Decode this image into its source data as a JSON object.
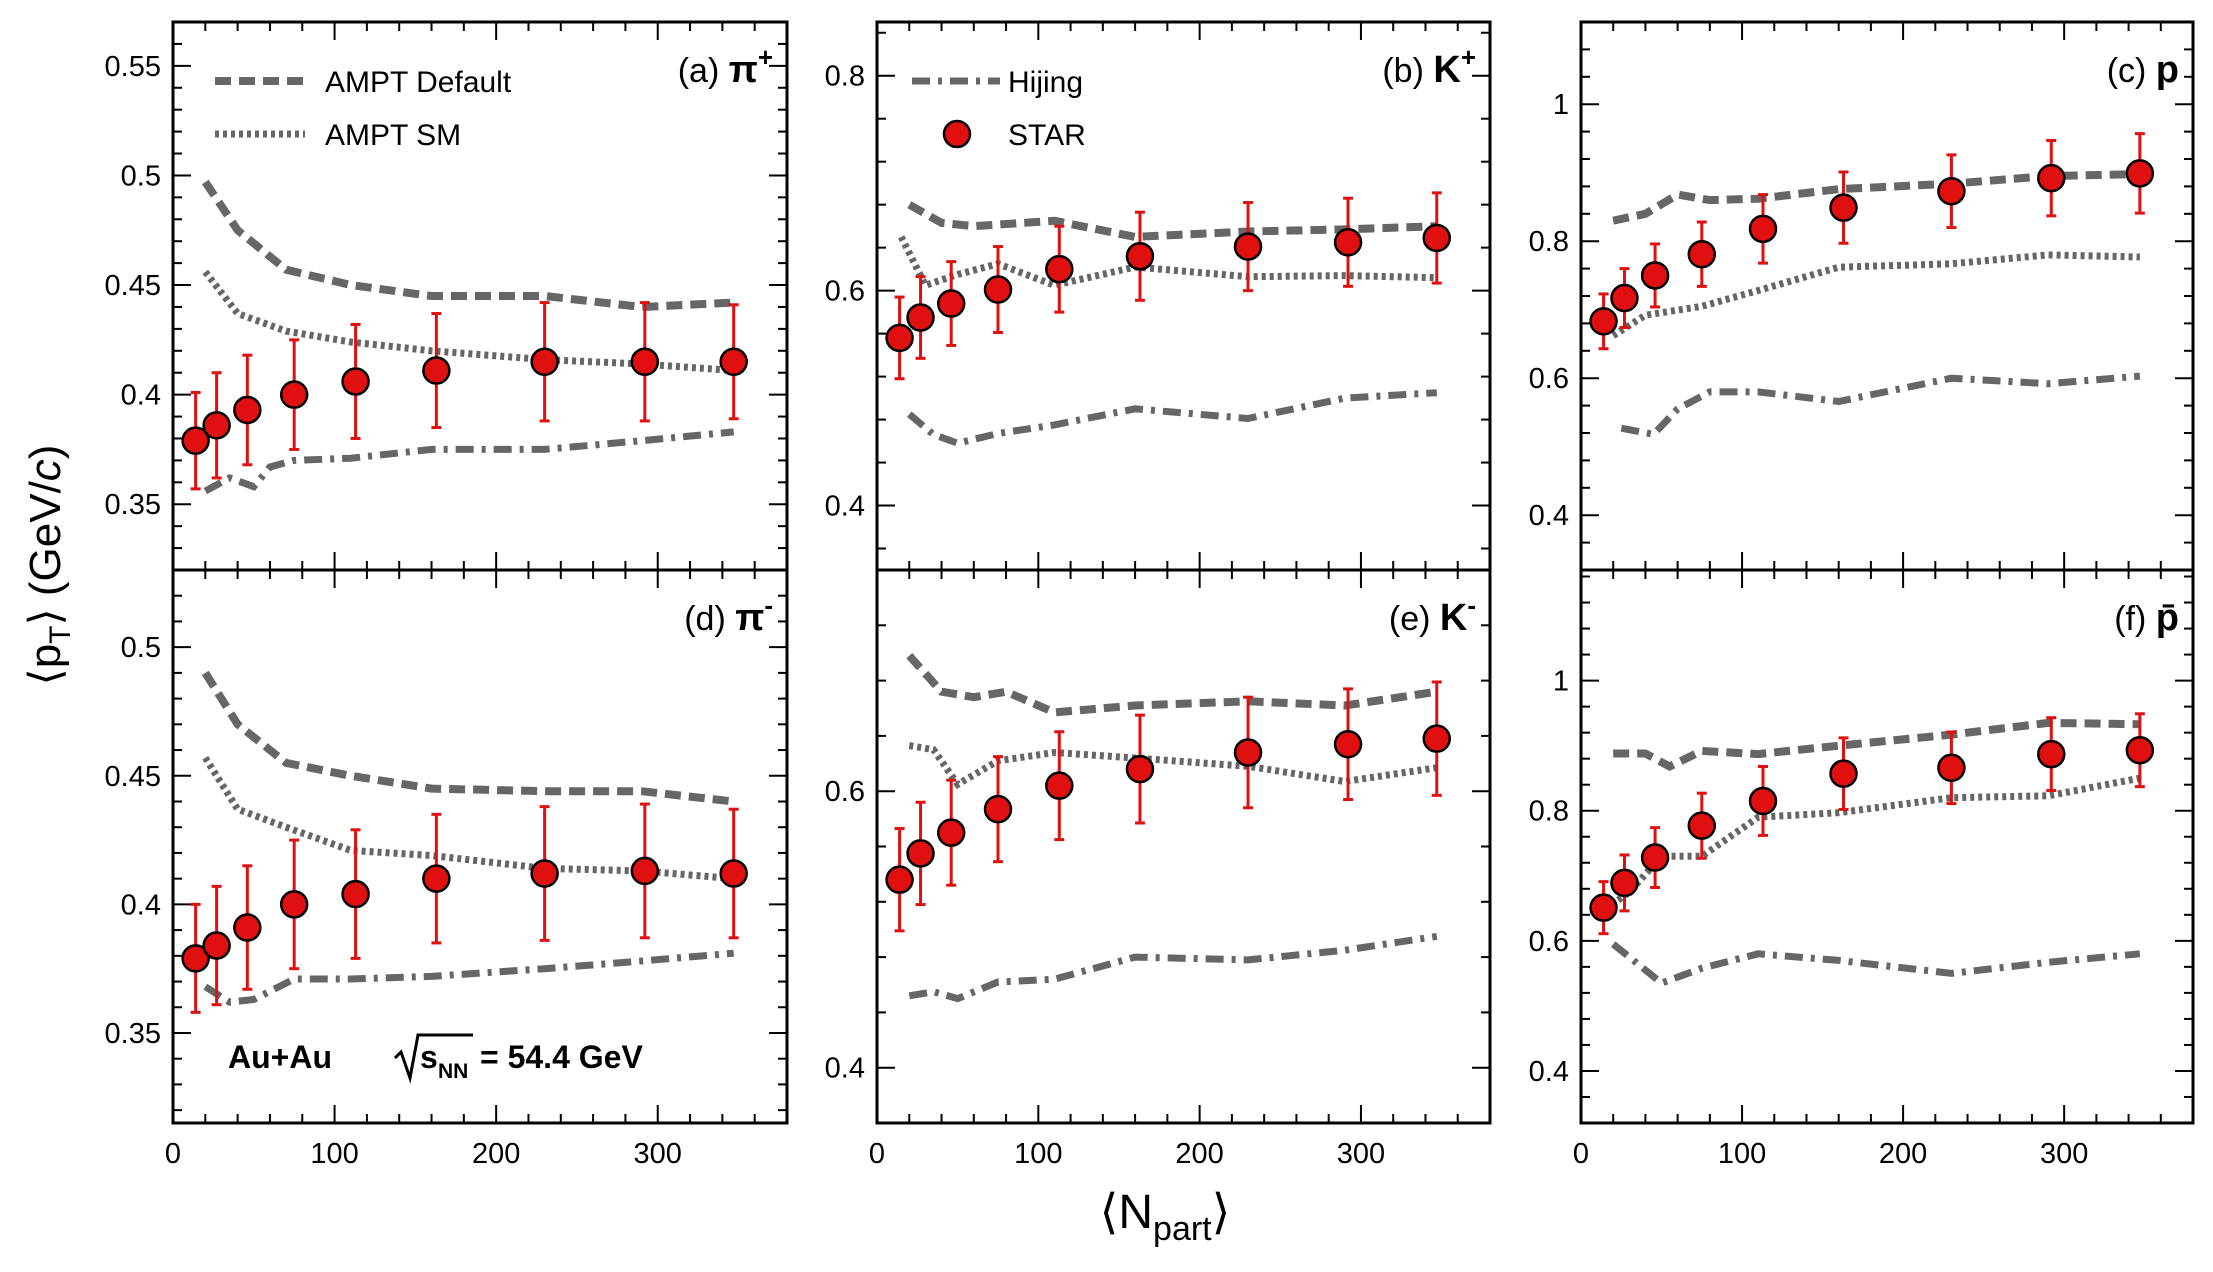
{
  "figure": {
    "ylabel": "⟨p_T⟩ (GeV/c)",
    "xlabel": "⟨N_part⟩",
    "system_text": "Au+Au √s_NN = 54.4 GeV",
    "colors": {
      "model_lines": "#666666",
      "star_fill": "#e01010",
      "star_error": "#e01010",
      "axis": "#000000"
    },
    "legend": [
      {
        "name": "AMPT Default",
        "style": "dashed",
        "panel": "a",
        "position": "top-left"
      },
      {
        "name": "AMPT SM",
        "style": "dotted",
        "panel": "a",
        "position": "top-left"
      },
      {
        "name": "Hijing",
        "style": "dash-dot",
        "panel": "b",
        "position": "top-left"
      },
      {
        "name": "STAR",
        "style": "marker",
        "panel": "b",
        "position": "top-left"
      }
    ]
  },
  "chart_data": [
    {
      "id": "a",
      "type": "scatter",
      "label_prefix": "(a)",
      "particle": "π",
      "charge": "+",
      "xlim": [
        0,
        380
      ],
      "ylim": [
        0.32,
        0.57
      ],
      "yticks": [
        0.35,
        0.4,
        0.45,
        0.5,
        0.55
      ],
      "ytick_labels": [
        "0.35",
        "0.4",
        "0.45",
        "0.5",
        "0.55"
      ],
      "xticks": [
        0,
        100,
        200,
        300
      ],
      "xtick_labels": [],
      "star": {
        "x": [
          14,
          27,
          46,
          75,
          113,
          163,
          230,
          292,
          347
        ],
        "y": [
          0.379,
          0.386,
          0.393,
          0.4,
          0.406,
          0.411,
          0.415,
          0.415,
          0.415
        ],
        "err": [
          0.022,
          0.024,
          0.025,
          0.025,
          0.026,
          0.026,
          0.027,
          0.027,
          0.026
        ]
      },
      "ampt_default": {
        "x": [
          20,
          40,
          70,
          110,
          160,
          230,
          290,
          347
        ],
        "y": [
          0.497,
          0.475,
          0.457,
          0.45,
          0.445,
          0.445,
          0.44,
          0.442
        ]
      },
      "ampt_sm": {
        "x": [
          20,
          40,
          70,
          110,
          160,
          230,
          290,
          347
        ],
        "y": [
          0.456,
          0.437,
          0.429,
          0.424,
          0.42,
          0.416,
          0.414,
          0.411
        ]
      },
      "hijing": {
        "x": [
          20,
          35,
          50,
          60,
          75,
          110,
          160,
          230,
          290,
          347
        ],
        "y": [
          0.356,
          0.362,
          0.358,
          0.367,
          0.37,
          0.371,
          0.375,
          0.375,
          0.379,
          0.383
        ]
      }
    },
    {
      "id": "b",
      "type": "scatter",
      "label_prefix": "(b)",
      "particle": "K",
      "charge": "+",
      "xlim": [
        0,
        380
      ],
      "ylim": [
        0.34,
        0.85
      ],
      "yticks": [
        0.4,
        0.6,
        0.8
      ],
      "ytick_labels": [
        "0.4",
        "0.6",
        "0.8"
      ],
      "xticks": [
        0,
        100,
        200,
        300
      ],
      "xtick_labels": [],
      "star": {
        "x": [
          14,
          27,
          46,
          75,
          113,
          163,
          230,
          292,
          347
        ],
        "y": [
          0.556,
          0.575,
          0.588,
          0.601,
          0.62,
          0.632,
          0.641,
          0.645,
          0.649
        ],
        "err": [
          0.038,
          0.038,
          0.039,
          0.04,
          0.04,
          0.041,
          0.041,
          0.041,
          0.042
        ]
      },
      "ampt_default": {
        "x": [
          20,
          40,
          60,
          110,
          160,
          230,
          290,
          347
        ],
        "y": [
          0.68,
          0.663,
          0.66,
          0.665,
          0.65,
          0.655,
          0.657,
          0.66
        ]
      },
      "ampt_sm": {
        "x": [
          15,
          30,
          50,
          75,
          110,
          160,
          230,
          290,
          347
        ],
        "y": [
          0.65,
          0.605,
          0.615,
          0.625,
          0.605,
          0.622,
          0.613,
          0.614,
          0.612
        ]
      },
      "hijing": {
        "x": [
          20,
          35,
          50,
          75,
          110,
          160,
          230,
          290,
          347
        ],
        "y": [
          0.485,
          0.466,
          0.458,
          0.467,
          0.475,
          0.49,
          0.481,
          0.5,
          0.505
        ]
      }
    },
    {
      "id": "c",
      "type": "scatter",
      "label_prefix": "(c)",
      "particle": "p",
      "charge": "",
      "xlim": [
        0,
        380
      ],
      "ylim": [
        0.32,
        1.12
      ],
      "yticks": [
        0.4,
        0.6,
        0.8,
        1.0
      ],
      "ytick_labels": [
        "0.4",
        "0.6",
        "0.8",
        "1"
      ],
      "xticks": [
        0,
        100,
        200,
        300
      ],
      "xtick_labels": [],
      "star": {
        "x": [
          14,
          27,
          46,
          75,
          113,
          163,
          230,
          292,
          347
        ],
        "y": [
          0.683,
          0.717,
          0.75,
          0.781,
          0.818,
          0.849,
          0.873,
          0.892,
          0.899
        ],
        "err": [
          0.04,
          0.043,
          0.046,
          0.047,
          0.05,
          0.052,
          0.053,
          0.055,
          0.058
        ]
      },
      "ampt_default": {
        "x": [
          20,
          40,
          60,
          80,
          110,
          160,
          230,
          290,
          347
        ],
        "y": [
          0.83,
          0.84,
          0.868,
          0.86,
          0.862,
          0.876,
          0.884,
          0.895,
          0.898
        ]
      },
      "ampt_sm": {
        "x": [
          20,
          40,
          75,
          110,
          160,
          230,
          290,
          347
        ],
        "y": [
          0.662,
          0.692,
          0.705,
          0.728,
          0.762,
          0.767,
          0.78,
          0.777
        ]
      },
      "hijing": {
        "x": [
          25,
          45,
          60,
          80,
          110,
          160,
          230,
          290,
          347
        ],
        "y": [
          0.527,
          0.518,
          0.555,
          0.58,
          0.58,
          0.566,
          0.6,
          0.592,
          0.603
        ]
      }
    },
    {
      "id": "d",
      "type": "scatter",
      "label_prefix": "(d)",
      "particle": "π",
      "charge": "-",
      "xlim": [
        0,
        380
      ],
      "ylim": [
        0.315,
        0.53
      ],
      "yticks": [
        0.35,
        0.4,
        0.45,
        0.5
      ],
      "ytick_labels": [
        "0.35",
        "0.4",
        "0.45",
        "0.5"
      ],
      "xticks": [
        0,
        100,
        200,
        300
      ],
      "xtick_labels": [
        "0",
        "100",
        "200",
        "300"
      ],
      "star": {
        "x": [
          14,
          27,
          46,
          75,
          113,
          163,
          230,
          292,
          347
        ],
        "y": [
          0.379,
          0.384,
          0.391,
          0.4,
          0.404,
          0.41,
          0.412,
          0.413,
          0.412
        ],
        "err": [
          0.021,
          0.023,
          0.024,
          0.025,
          0.025,
          0.025,
          0.026,
          0.026,
          0.025
        ]
      },
      "ampt_default": {
        "x": [
          20,
          40,
          70,
          110,
          160,
          230,
          290,
          347
        ],
        "y": [
          0.49,
          0.47,
          0.455,
          0.45,
          0.445,
          0.444,
          0.444,
          0.44
        ]
      },
      "ampt_sm": {
        "x": [
          20,
          40,
          70,
          110,
          160,
          230,
          290,
          347
        ],
        "y": [
          0.457,
          0.437,
          0.43,
          0.421,
          0.419,
          0.414,
          0.413,
          0.41
        ]
      },
      "hijing": {
        "x": [
          20,
          35,
          50,
          75,
          110,
          160,
          230,
          290,
          347
        ],
        "y": [
          0.368,
          0.362,
          0.363,
          0.371,
          0.371,
          0.372,
          0.375,
          0.378,
          0.381
        ]
      }
    },
    {
      "id": "e",
      "type": "scatter",
      "label_prefix": "(e)",
      "particle": "K",
      "charge": "-",
      "xlim": [
        0,
        380
      ],
      "ylim": [
        0.36,
        0.76
      ],
      "yticks": [
        0.4,
        0.6
      ],
      "ytick_labels": [
        "0.4",
        "0.6"
      ],
      "xticks": [
        0,
        100,
        200,
        300
      ],
      "xtick_labels": [
        "0",
        "100",
        "200",
        "300"
      ],
      "star": {
        "x": [
          14,
          27,
          46,
          75,
          113,
          163,
          230,
          292,
          347
        ],
        "y": [
          0.536,
          0.555,
          0.57,
          0.587,
          0.604,
          0.616,
          0.628,
          0.634,
          0.638
        ],
        "err": [
          0.037,
          0.037,
          0.038,
          0.038,
          0.039,
          0.039,
          0.04,
          0.04,
          0.041
        ]
      },
      "ampt_default": {
        "x": [
          20,
          40,
          60,
          80,
          110,
          160,
          230,
          290,
          347
        ],
        "y": [
          0.698,
          0.672,
          0.668,
          0.672,
          0.657,
          0.662,
          0.665,
          0.662,
          0.672
        ]
      },
      "ampt_sm": {
        "x": [
          20,
          35,
          50,
          75,
          110,
          160,
          230,
          290,
          347
        ],
        "y": [
          0.633,
          0.63,
          0.605,
          0.622,
          0.628,
          0.624,
          0.618,
          0.607,
          0.617
        ]
      },
      "hijing": {
        "x": [
          20,
          35,
          50,
          75,
          110,
          160,
          230,
          290,
          347
        ],
        "y": [
          0.452,
          0.455,
          0.45,
          0.462,
          0.464,
          0.48,
          0.478,
          0.485,
          0.495
        ]
      }
    },
    {
      "id": "f",
      "type": "scatter",
      "label_prefix": "(f)",
      "particle": "p̄",
      "charge": "",
      "xlim": [
        0,
        380
      ],
      "ylim": [
        0.32,
        1.17
      ],
      "yticks": [
        0.4,
        0.6,
        0.8,
        1.0
      ],
      "ytick_labels": [
        "0.4",
        "0.6",
        "0.8",
        "1"
      ],
      "xticks": [
        0,
        100,
        200,
        300
      ],
      "xtick_labels": [
        "0",
        "100",
        "200",
        "300"
      ],
      "star": {
        "x": [
          14,
          27,
          46,
          75,
          113,
          163,
          230,
          292,
          347
        ],
        "y": [
          0.651,
          0.689,
          0.728,
          0.777,
          0.815,
          0.857,
          0.866,
          0.887,
          0.893
        ],
        "err": [
          0.04,
          0.043,
          0.046,
          0.05,
          0.053,
          0.055,
          0.055,
          0.056,
          0.056
        ]
      },
      "ampt_default": {
        "x": [
          20,
          40,
          55,
          75,
          110,
          160,
          230,
          290,
          347
        ],
        "y": [
          0.888,
          0.888,
          0.868,
          0.892,
          0.887,
          0.9,
          0.917,
          0.935,
          0.933
        ]
      },
      "ampt_sm": {
        "x": [
          15,
          30,
          50,
          75,
          110,
          160,
          230,
          290,
          347
        ],
        "y": [
          0.648,
          0.675,
          0.73,
          0.73,
          0.79,
          0.797,
          0.82,
          0.823,
          0.85
        ]
      },
      "hijing": {
        "x": [
          20,
          35,
          50,
          75,
          110,
          160,
          230,
          290,
          347
        ],
        "y": [
          0.595,
          0.565,
          0.535,
          0.558,
          0.58,
          0.57,
          0.55,
          0.567,
          0.58
        ]
      }
    }
  ]
}
